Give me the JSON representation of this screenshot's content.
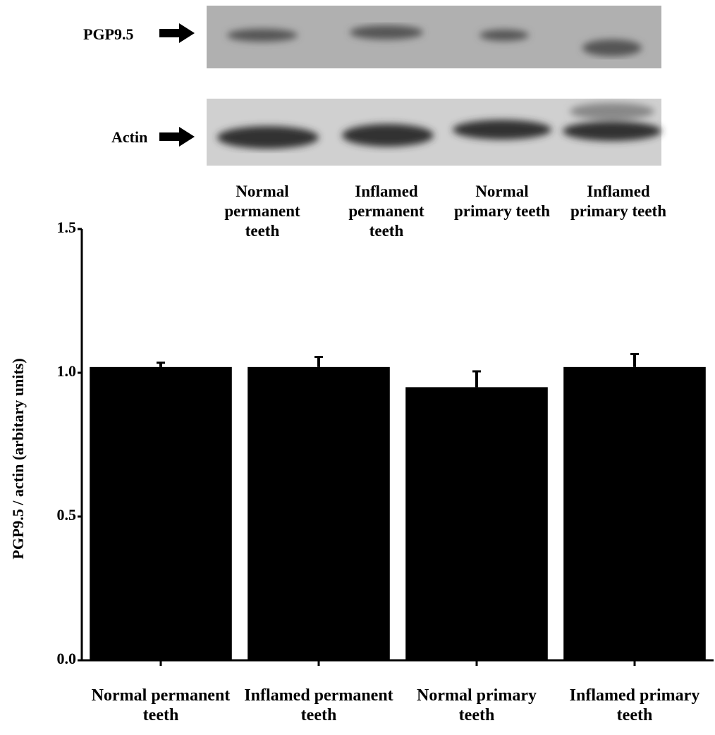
{
  "blot": {
    "bands": [
      "PGP9.5",
      "Actin"
    ],
    "lanes": [
      "Normal permanent teeth",
      "Inflamed permanent teeth",
      "Normal primary teeth",
      "Inflamed primary teeth"
    ]
  },
  "chart_data": {
    "type": "bar",
    "y_label": "PGP9.5 / actin (arbitary units)",
    "categories": [
      "Normal permanent teeth",
      "Inflamed permanent teeth",
      "Normal primary teeth",
      "Inflamed primary teeth"
    ],
    "values": [
      1.02,
      1.02,
      0.95,
      1.02
    ],
    "errors": [
      0.015,
      0.035,
      0.055,
      0.045
    ],
    "color": "#000000",
    "ylim": [
      0,
      1.5
    ],
    "yticks": [
      {
        "value": 0,
        "label": "0.0"
      },
      {
        "value": 0.5,
        "label": "0.5"
      },
      {
        "value": 1,
        "label": "1.0"
      },
      1.5
    ],
    "grid": false
  }
}
